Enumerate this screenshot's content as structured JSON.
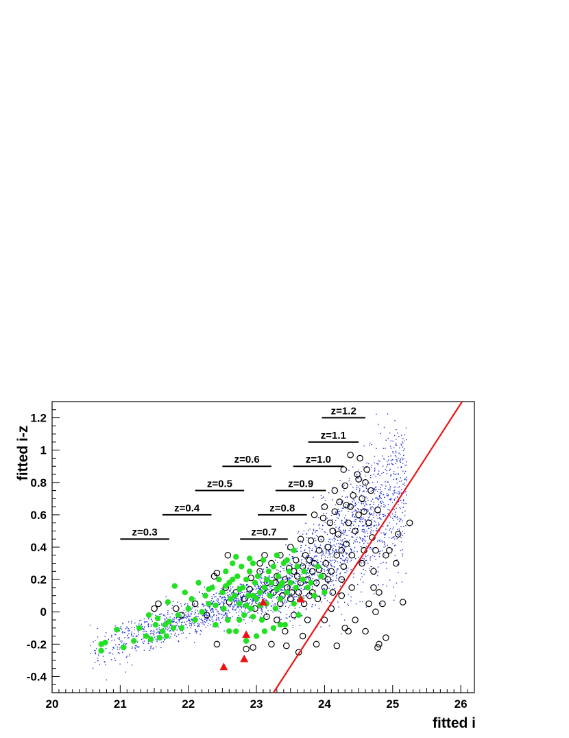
{
  "chart_data": {
    "type": "scatter",
    "xlabel": "fitted i",
    "ylabel": "fitted i-z",
    "xlim": [
      20,
      26.2
    ],
    "ylim": [
      -0.5,
      1.3
    ],
    "x_ticks": [
      "20",
      "21",
      "22",
      "23",
      "24",
      "25",
      "26"
    ],
    "y_ticks": [
      "-0.4",
      "-0.2",
      "0",
      "0.2",
      "0.4",
      "0.6",
      "0.8",
      "1",
      "1.2"
    ],
    "grid": false,
    "colors": {
      "background_points": "#1f2fd6",
      "green_points": "#22e022",
      "open_circles": "#000000",
      "triangles": "#ee1111",
      "cut_line": "#ee1111",
      "redshift_bars": "#000000"
    },
    "cut_line": {
      "x": [
        23.25,
        26.02
      ],
      "y": [
        -0.5,
        1.3
      ]
    },
    "redshift_markers": [
      {
        "label": "z=0.3",
        "x0": 21.0,
        "x1": 21.72,
        "y": 0.45
      },
      {
        "label": "z=0.4",
        "x0": 21.62,
        "x1": 22.34,
        "y": 0.6
      },
      {
        "label": "z=0.5",
        "x0": 22.1,
        "x1": 22.82,
        "y": 0.75
      },
      {
        "label": "z=0.6",
        "x0": 22.5,
        "x1": 23.22,
        "y": 0.9
      },
      {
        "label": "z=0.7",
        "x0": 22.76,
        "x1": 23.46,
        "y": 0.45
      },
      {
        "label": "z=0.8",
        "x0": 23.02,
        "x1": 23.74,
        "y": 0.6
      },
      {
        "label": "z=0.9",
        "x0": 23.28,
        "x1": 24.02,
        "y": 0.75
      },
      {
        "label": "z=1.0",
        "x0": 23.54,
        "x1": 24.28,
        "y": 0.9
      },
      {
        "label": "z=1.1",
        "x0": 23.76,
        "x1": 24.5,
        "y": 1.05
      },
      {
        "label": "z=1.2",
        "x0": 23.96,
        "x1": 24.6,
        "y": 1.2
      }
    ],
    "series": [
      {
        "marker": "open-circle",
        "points": [
          [
            21.5,
            0.02
          ],
          [
            21.56,
            0.05
          ],
          [
            21.82,
            0.02
          ],
          [
            21.9,
            -0.02
          ],
          [
            22.1,
            0.05
          ],
          [
            22.27,
            -0.02
          ],
          [
            22.38,
            0.22
          ],
          [
            22.42,
            0.24
          ],
          [
            22.55,
            0.15
          ],
          [
            22.6,
            0.06
          ],
          [
            22.7,
            0.12
          ],
          [
            22.82,
            0.08
          ],
          [
            22.9,
            0.14
          ],
          [
            22.98,
            0.02
          ],
          [
            23.05,
            0.25
          ],
          [
            23.12,
            0.35
          ],
          [
            23.16,
            0.18
          ],
          [
            23.22,
            0.3
          ],
          [
            23.25,
            0.12
          ],
          [
            23.3,
            0.22
          ],
          [
            23.35,
            0.05
          ],
          [
            23.42,
            0.2
          ],
          [
            23.45,
            0.15
          ],
          [
            23.48,
            0.27
          ],
          [
            23.5,
            0.08
          ],
          [
            23.55,
            0.25
          ],
          [
            23.58,
            0.32
          ],
          [
            23.62,
            0.12
          ],
          [
            23.65,
            0.18
          ],
          [
            23.68,
            0.28
          ],
          [
            23.72,
            0.35
          ],
          [
            23.75,
            0.2
          ],
          [
            23.78,
            0.1
          ],
          [
            23.82,
            0.25
          ],
          [
            23.85,
            0.3
          ],
          [
            23.88,
            0.18
          ],
          [
            23.9,
            0.08
          ],
          [
            23.92,
            0.38
          ],
          [
            23.95,
            0.45
          ],
          [
            23.98,
            0.22
          ],
          [
            24.0,
            0.15
          ],
          [
            24.02,
            0.3
          ],
          [
            24.05,
            0.4
          ],
          [
            24.08,
            0.55
          ],
          [
            24.1,
            0.25
          ],
          [
            24.12,
            0.12
          ],
          [
            24.15,
            0.62
          ],
          [
            24.18,
            0.35
          ],
          [
            24.2,
            0.48
          ],
          [
            24.22,
            0.68
          ],
          [
            24.25,
            0.2
          ],
          [
            24.28,
            0.28
          ],
          [
            24.3,
            0.78
          ],
          [
            24.32,
            0.42
          ],
          [
            24.35,
            0.55
          ],
          [
            24.38,
            0.65
          ],
          [
            24.4,
            0.35
          ],
          [
            24.42,
            0.72
          ],
          [
            24.45,
            0.5
          ],
          [
            24.48,
            0.85
          ],
          [
            24.5,
            0.6
          ],
          [
            24.52,
            0.95
          ],
          [
            24.55,
            0.7
          ],
          [
            24.58,
            0.38
          ],
          [
            24.6,
            0.8
          ],
          [
            24.62,
            0.88
          ],
          [
            24.65,
            0.55
          ],
          [
            24.68,
            0.75
          ],
          [
            24.7,
            0.46
          ],
          [
            24.72,
            0.25
          ],
          [
            24.75,
            0.38
          ],
          [
            24.78,
            0.63
          ],
          [
            24.8,
            0.12
          ],
          [
            24.85,
            0.05
          ],
          [
            24.9,
            0.35
          ],
          [
            24.95,
            0.38
          ],
          [
            25.05,
            0.3
          ],
          [
            25.08,
            0.48
          ],
          [
            25.15,
            0.06
          ],
          [
            25.25,
            0.55
          ],
          [
            23.62,
            -0.25
          ],
          [
            23.68,
            -0.15
          ],
          [
            23.75,
            -0.05
          ],
          [
            23.88,
            -0.2
          ],
          [
            24.0,
            -0.05
          ],
          [
            24.18,
            -0.21
          ],
          [
            24.3,
            -0.1
          ],
          [
            24.45,
            -0.05
          ],
          [
            24.6,
            -0.12
          ],
          [
            24.78,
            -0.22
          ],
          [
            24.8,
            -0.2
          ],
          [
            24.9,
            -0.16
          ],
          [
            24.75,
            0.0
          ],
          [
            24.35,
            -0.12
          ],
          [
            22.42,
            -0.2
          ],
          [
            22.85,
            -0.23
          ],
          [
            22.95,
            -0.22
          ],
          [
            23.22,
            -0.2
          ],
          [
            23.44,
            -0.21
          ],
          [
            23.15,
            -0.03
          ],
          [
            23.3,
            -0.05
          ],
          [
            23.42,
            -0.12
          ],
          [
            23.55,
            -0.02
          ],
          [
            23.7,
            0.05
          ],
          [
            23.82,
            0.12
          ],
          [
            24.1,
            0.02
          ],
          [
            24.25,
            0.1
          ],
          [
            24.4,
            0.15
          ],
          [
            24.55,
            0.3
          ],
          [
            24.65,
            0.05
          ],
          [
            24.72,
            0.15
          ],
          [
            23.35,
            0.35
          ],
          [
            23.5,
            0.4
          ],
          [
            23.65,
            0.45
          ],
          [
            23.85,
            0.6
          ],
          [
            24.0,
            0.65
          ],
          [
            24.15,
            0.75
          ],
          [
            24.28,
            0.88
          ],
          [
            24.38,
            0.97
          ],
          [
            24.58,
            0.62
          ],
          [
            24.25,
            0.38
          ],
          [
            24.12,
            0.5
          ],
          [
            23.98,
            0.58
          ],
          [
            23.8,
            0.44
          ],
          [
            24.32,
            0.66
          ],
          [
            24.5,
            0.82
          ],
          [
            22.58,
            0.35
          ],
          [
            23.05,
            0.3
          ],
          [
            22.92,
            0.21
          ],
          [
            23.1,
            0.14
          ],
          [
            23.28,
            0.18
          ],
          [
            23.38,
            0.1
          ],
          [
            23.52,
            0.12
          ],
          [
            23.6,
            0.22
          ],
          [
            23.78,
            0.32
          ],
          [
            23.92,
            0.26
          ],
          [
            24.05,
            0.2
          ]
        ]
      },
      {
        "marker": "filled-circle",
        "points": [
          [
            20.72,
            -0.2
          ],
          [
            20.72,
            -0.24
          ],
          [
            20.78,
            -0.19
          ],
          [
            20.95,
            -0.11
          ],
          [
            21.05,
            -0.22
          ],
          [
            21.2,
            -0.18
          ],
          [
            21.28,
            -0.1
          ],
          [
            21.38,
            -0.15
          ],
          [
            21.42,
            -0.02
          ],
          [
            21.45,
            -0.17
          ],
          [
            21.52,
            -0.08
          ],
          [
            21.58,
            -0.16
          ],
          [
            21.62,
            -0.12
          ],
          [
            21.66,
            -0.08
          ],
          [
            21.68,
            -0.15
          ],
          [
            21.72,
            -0.06
          ],
          [
            21.78,
            -0.1
          ],
          [
            21.8,
            0.16
          ],
          [
            21.85,
            -0.02
          ],
          [
            21.9,
            -0.1
          ],
          [
            21.95,
            0.12
          ],
          [
            22.0,
            0.02
          ],
          [
            22.05,
            0.08
          ],
          [
            22.1,
            -0.05
          ],
          [
            22.15,
            0.18
          ],
          [
            22.2,
            0.0
          ],
          [
            22.25,
            0.1
          ],
          [
            22.3,
            0.05
          ],
          [
            22.35,
            0.15
          ],
          [
            22.4,
            -0.08
          ],
          [
            22.45,
            0.2
          ],
          [
            22.5,
            0.12
          ],
          [
            22.52,
            0.02
          ],
          [
            22.55,
            0.25
          ],
          [
            22.58,
            -0.05
          ],
          [
            22.6,
            0.18
          ],
          [
            22.62,
            0.08
          ],
          [
            22.65,
            0.3
          ],
          [
            22.68,
            0.1
          ],
          [
            22.7,
            -0.12
          ],
          [
            22.72,
            0.22
          ],
          [
            22.75,
            0.05
          ],
          [
            22.78,
            0.28
          ],
          [
            22.8,
            0.15
          ],
          [
            22.82,
            -0.02
          ],
          [
            22.85,
            0.2
          ],
          [
            22.88,
            0.1
          ],
          [
            22.9,
            0.25
          ],
          [
            22.92,
            0.02
          ],
          [
            22.95,
            0.3
          ],
          [
            22.98,
            0.18
          ],
          [
            23.0,
            0.08
          ],
          [
            23.02,
            0.22
          ],
          [
            23.05,
            0.12
          ],
          [
            23.08,
            -0.05
          ],
          [
            23.1,
            0.32
          ],
          [
            23.12,
            0.15
          ],
          [
            23.15,
            0.05
          ],
          [
            23.18,
            0.25
          ],
          [
            23.2,
            0.1
          ],
          [
            23.22,
            0.18
          ],
          [
            23.25,
            0.28
          ],
          [
            23.28,
            0.02
          ],
          [
            23.3,
            0.14
          ],
          [
            23.32,
            0.22
          ],
          [
            23.35,
            0.08
          ],
          [
            23.38,
            0.18
          ],
          [
            23.4,
            0.3
          ],
          [
            23.42,
            -0.08
          ],
          [
            23.45,
            0.12
          ],
          [
            23.48,
            0.25
          ],
          [
            23.5,
            0.18
          ],
          [
            23.55,
            0.05
          ],
          [
            23.58,
            0.15
          ],
          [
            23.6,
            0.28
          ],
          [
            23.62,
            -0.02
          ],
          [
            23.65,
            0.08
          ],
          [
            23.68,
            0.2
          ],
          [
            23.7,
            0.25
          ],
          [
            23.75,
            0.15
          ],
          [
            23.8,
            0.18
          ],
          [
            23.85,
            0.1
          ],
          [
            23.9,
            0.28
          ],
          [
            23.95,
            0.22
          ],
          [
            24.0,
            0.12
          ],
          [
            23.55,
            0.38
          ],
          [
            23.45,
            0.32
          ],
          [
            22.7,
            0.34
          ],
          [
            22.9,
            0.33
          ],
          [
            23.3,
            0.35
          ],
          [
            22.6,
            -0.12
          ],
          [
            22.85,
            -0.18
          ],
          [
            23.0,
            -0.15
          ],
          [
            23.12,
            -0.12
          ],
          [
            23.25,
            -0.1
          ],
          [
            23.35,
            -0.08
          ],
          [
            22.75,
            -0.05
          ],
          [
            22.95,
            -0.03
          ],
          [
            21.55,
            -0.04
          ],
          [
            21.7,
            0.06
          ],
          [
            22.3,
            0.14
          ],
          [
            22.4,
            0.04
          ],
          [
            22.55,
            0.16
          ],
          [
            22.65,
            0.2
          ],
          [
            22.75,
            0.14
          ],
          [
            22.85,
            0.04
          ],
          [
            22.95,
            0.1
          ],
          [
            23.05,
            0.04
          ],
          [
            23.15,
            0.2
          ],
          [
            23.35,
            0.16
          ]
        ]
      },
      {
        "marker": "triangle",
        "points": [
          [
            22.52,
            -0.34
          ],
          [
            22.82,
            -0.29
          ],
          [
            22.85,
            -0.14
          ],
          [
            23.1,
            0.06
          ],
          [
            23.65,
            0.08
          ]
        ]
      }
    ]
  }
}
